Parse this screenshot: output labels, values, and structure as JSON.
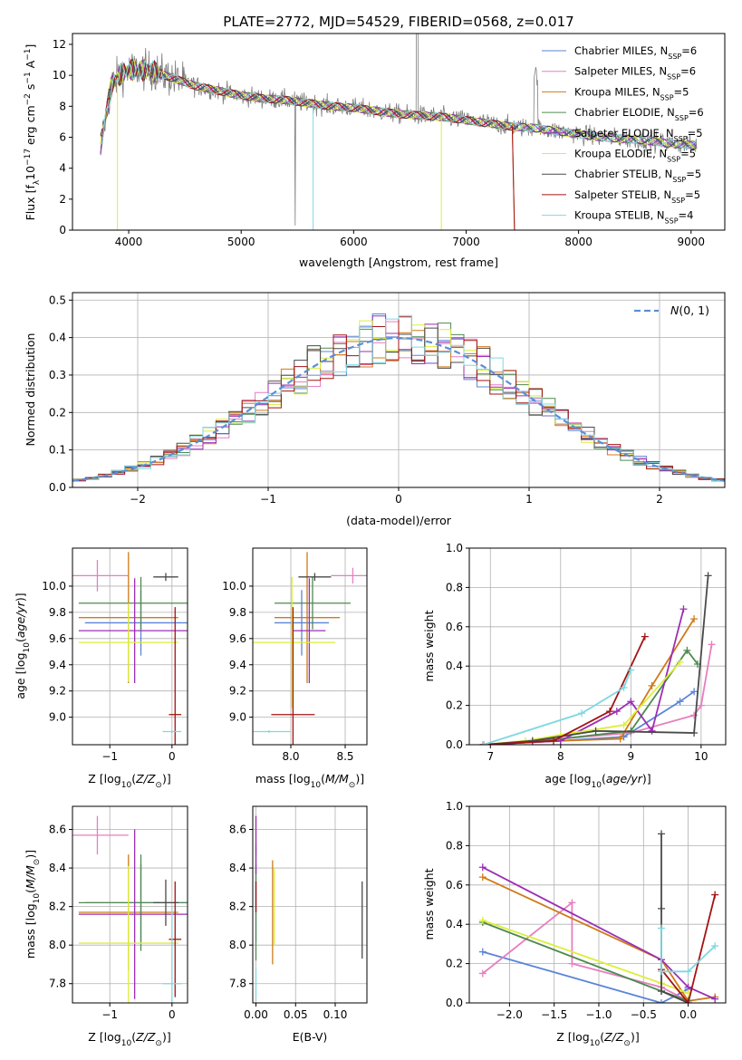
{
  "figure_title": "PLATE=2772, MJD=54529, FIBERID=0568, z=0.017",
  "colors": {
    "Chabrier MILES": "#5b84d8",
    "Salpeter MILES": "#e77fbf",
    "Kroupa MILES": "#d07a18",
    "Chabrier ELODIE": "#4f8a4f",
    "Salpeter ELODIE": "#9b2fb5",
    "Kroupa ELODIE": "#dcee3b",
    "Chabrier STELIB": "#4a4a4a",
    "Salpeter STELIB": "#a31313",
    "Kroupa STELIB": "#7fd8e0",
    "gauss": "#5b8fd6"
  },
  "chart_data": [
    {
      "id": "spectrum",
      "type": "line",
      "xlabel": "wavelength [Angstrom, rest frame]",
      "ylabel": "Flux [f_λ10^-17 erg cm^-2 s^-1 A^-1]",
      "xlim": [
        3500,
        9300
      ],
      "ylim": [
        0,
        12.7
      ],
      "xticks": [
        4000,
        5000,
        6000,
        7000,
        8000,
        9000
      ],
      "yticks": [
        0,
        2,
        4,
        6,
        8,
        10,
        12
      ],
      "grid": false,
      "legend_position": "top-right",
      "legend": [
        {
          "model": "Chabrier MILES",
          "n": "6"
        },
        {
          "model": "Salpeter MILES",
          "n": "6"
        },
        {
          "model": "Kroupa MILES",
          "n": "5"
        },
        {
          "model": "Chabrier ELODIE",
          "n": "6"
        },
        {
          "model": "Salpeter ELODIE",
          "n": "5"
        },
        {
          "model": "Kroupa ELODIE",
          "n": "5"
        },
        {
          "model": "Chabrier STELIB",
          "n": "5"
        },
        {
          "model": "Salpeter STELIB",
          "n": "5"
        },
        {
          "model": "Kroupa STELIB",
          "n": "4"
        }
      ],
      "data_x": [
        3750,
        3850,
        3950,
        4050,
        4200,
        4400,
        4600,
        4800,
        5000,
        5200,
        5400,
        5600,
        5800,
        6000,
        6200,
        6400,
        6600,
        6800,
        7000,
        7200,
        7400,
        7600,
        7800,
        8000,
        8200,
        8400,
        8600,
        8800,
        9000
      ],
      "data_y": [
        5.5,
        9.5,
        10.2,
        10.4,
        10.3,
        9.8,
        9.3,
        9.0,
        8.7,
        8.5,
        8.4,
        8.2,
        8.0,
        7.9,
        7.7,
        7.5,
        7.4,
        7.3,
        7.1,
        6.9,
        6.7,
        6.6,
        6.4,
        6.2,
        6.0,
        5.9,
        5.8,
        5.6,
        5.5
      ]
    },
    {
      "id": "residuals",
      "type": "line",
      "xlabel": "(data-model)/error",
      "ylabel": "Normed distribution",
      "xlim": [
        -2.5,
        2.5
      ],
      "ylim": [
        0,
        0.52
      ],
      "xticks": [
        -2,
        -1,
        0,
        1,
        2
      ],
      "yticks": [
        0.0,
        0.1,
        0.2,
        0.3,
        0.4,
        0.5
      ],
      "grid": true,
      "legend_position": "top-right",
      "series": [
        {
          "name": "N(0,1)",
          "mu": 0,
          "sigma": 1
        }
      ]
    },
    {
      "id": "age_vs_Z",
      "type": "scatter",
      "xlabel": "Z [log10(Z/Z_sun)]",
      "ylabel": "age [log10(age/yr)]",
      "xlim": [
        -1.6,
        0.25
      ],
      "ylim": [
        8.79,
        10.29
      ],
      "xticks": [
        -1,
        0
      ],
      "yticks": [
        9.0,
        9.2,
        9.4,
        9.6,
        9.8,
        10.0
      ],
      "grid": true,
      "points": [
        {
          "model": "Chabrier MILES",
          "x": -0.5,
          "xerr": 0.9,
          "y": 9.72,
          "yerr": 0.25
        },
        {
          "model": "Salpeter MILES",
          "x": -1.2,
          "xerr": 0.5,
          "y": 10.08,
          "yerr": 0.12
        },
        {
          "model": "Kroupa MILES",
          "x": -0.7,
          "xerr": 0.8,
          "y": 9.76,
          "yerr": 0.5
        },
        {
          "model": "Chabrier ELODIE",
          "x": -0.5,
          "xerr": 1.0,
          "y": 9.87,
          "yerr": 0.2
        },
        {
          "model": "Salpeter ELODIE",
          "x": -0.6,
          "xerr": 0.9,
          "y": 9.66,
          "yerr": 0.4
        },
        {
          "model": "Kroupa ELODIE",
          "x": -0.7,
          "xerr": 0.8,
          "y": 9.57,
          "yerr": 0.3
        },
        {
          "model": "Chabrier STELIB",
          "x": -0.1,
          "xerr": 0.2,
          "y": 10.07,
          "yerr": 0.03
        },
        {
          "model": "Salpeter STELIB",
          "x": 0.05,
          "xerr": 0.1,
          "y": 9.02,
          "yerr": 0.82
        },
        {
          "model": "Kroupa STELIB",
          "x": 0.0,
          "xerr": 0.15,
          "y": 8.89,
          "yerr": 0.01
        }
      ]
    },
    {
      "id": "age_vs_mass",
      "type": "scatter",
      "xlabel": "mass [log10(M/M_sun)]",
      "ylabel": "",
      "xlim": [
        7.65,
        8.7
      ],
      "ylim": [
        8.79,
        10.29
      ],
      "xticks": [
        8.0,
        8.5
      ],
      "yticks": [
        9.0,
        9.2,
        9.4,
        9.6,
        9.8,
        10.0
      ],
      "grid": true,
      "points": [
        {
          "model": "Chabrier MILES",
          "x": 8.1,
          "xerr": 0.25,
          "y": 9.72,
          "yerr": 0.25
        },
        {
          "model": "Salpeter MILES",
          "x": 8.57,
          "xerr": 0.2,
          "y": 10.08,
          "yerr": 0.06
        },
        {
          "model": "Kroupa MILES",
          "x": 8.15,
          "xerr": 0.3,
          "y": 9.76,
          "yerr": 0.5
        },
        {
          "model": "Chabrier ELODIE",
          "x": 8.2,
          "xerr": 0.35,
          "y": 9.87,
          "yerr": 0.2
        },
        {
          "model": "Salpeter ELODIE",
          "x": 8.17,
          "xerr": 0.15,
          "y": 9.66,
          "yerr": 0.4
        },
        {
          "model": "Kroupa ELODIE",
          "x": 8.01,
          "xerr": 0.4,
          "y": 9.57,
          "yerr": 0.5
        },
        {
          "model": "Chabrier STELIB",
          "x": 8.22,
          "xerr": 0.15,
          "y": 10.07,
          "yerr": 0.03
        },
        {
          "model": "Salpeter STELIB",
          "x": 8.02,
          "xerr": 0.2,
          "y": 9.02,
          "yerr": 0.82
        },
        {
          "model": "Kroupa STELIB",
          "x": 7.8,
          "xerr": 0.2,
          "y": 8.89,
          "yerr": 0.01
        }
      ]
    },
    {
      "id": "weights_vs_age",
      "type": "line",
      "xlabel": "age [log10(age/yr)]",
      "ylabel": "mass weight",
      "xlim": [
        6.7,
        10.35
      ],
      "ylim": [
        0.0,
        1.0
      ],
      "xticks": [
        7,
        8,
        9,
        10
      ],
      "yticks": [
        0.0,
        0.2,
        0.4,
        0.6,
        0.8,
        1.0
      ],
      "grid": true,
      "series": [
        {
          "model": "Chabrier MILES",
          "x": [
            6.9,
            8.0,
            8.9,
            9.7,
            9.9
          ],
          "y": [
            0.0,
            0.02,
            0.04,
            0.22,
            0.27
          ]
        },
        {
          "model": "Salpeter MILES",
          "x": [
            6.9,
            8.0,
            9.0,
            9.9,
            10.0,
            10.15
          ],
          "y": [
            0.0,
            0.03,
            0.06,
            0.15,
            0.2,
            0.51
          ]
        },
        {
          "model": "Kroupa MILES",
          "x": [
            6.9,
            8.0,
            8.85,
            9.3,
            9.9
          ],
          "y": [
            0.0,
            0.02,
            0.03,
            0.3,
            0.64
          ]
        },
        {
          "model": "Chabrier ELODIE",
          "x": [
            6.9,
            8.0,
            9.0,
            9.8,
            9.95
          ],
          "y": [
            0.0,
            0.03,
            0.07,
            0.48,
            0.41
          ]
        },
        {
          "model": "Salpeter ELODIE",
          "x": [
            6.9,
            8.0,
            8.8,
            9.0,
            9.3,
            9.75
          ],
          "y": [
            0.0,
            0.02,
            0.17,
            0.22,
            0.07,
            0.69
          ]
        },
        {
          "model": "Kroupa ELODIE",
          "x": [
            6.9,
            7.5,
            8.0,
            8.9,
            9.7
          ],
          "y": [
            0.0,
            0.02,
            0.05,
            0.1,
            0.42
          ]
        },
        {
          "model": "Chabrier STELIB",
          "x": [
            6.9,
            7.6,
            8.5,
            9.9,
            10.1
          ],
          "y": [
            0.0,
            0.02,
            0.07,
            0.06,
            0.86
          ]
        },
        {
          "model": "Salpeter STELIB",
          "x": [
            6.9,
            7.9,
            8.7,
            9.2
          ],
          "y": [
            0.0,
            0.02,
            0.17,
            0.55
          ]
        },
        {
          "model": "Kroupa STELIB",
          "x": [
            6.9,
            8.3,
            8.9,
            9.0
          ],
          "y": [
            0.0,
            0.16,
            0.29,
            0.38
          ]
        }
      ]
    },
    {
      "id": "mass_vs_Z",
      "type": "scatter",
      "xlabel": "Z [log10(Z/Z_sun)]",
      "ylabel": "mass [log10(M/M_sun)]",
      "xlim": [
        -1.6,
        0.25
      ],
      "ylim": [
        7.7,
        8.72
      ],
      "xticks": [
        -1,
        0
      ],
      "yticks": [
        7.8,
        8.0,
        8.2,
        8.4,
        8.6
      ],
      "grid": true,
      "points": [
        {
          "model": "Chabrier MILES",
          "x": -0.5,
          "xerr": 0.9,
          "y": 8.22,
          "yerr": 0.2
        },
        {
          "model": "Salpeter MILES",
          "x": -1.2,
          "xerr": 0.5,
          "y": 8.57,
          "yerr": 0.1
        },
        {
          "model": "Kroupa MILES",
          "x": -0.7,
          "xerr": 0.8,
          "y": 8.17,
          "yerr": 0.3
        },
        {
          "model": "Chabrier ELODIE",
          "x": -0.5,
          "xerr": 1.0,
          "y": 8.22,
          "yerr": 0.25
        },
        {
          "model": "Salpeter ELODIE",
          "x": -0.6,
          "xerr": 0.9,
          "y": 8.16,
          "yerr": 0.44
        },
        {
          "model": "Kroupa ELODIE",
          "x": -0.7,
          "xerr": 0.8,
          "y": 8.01,
          "yerr": 0.4
        },
        {
          "model": "Chabrier STELIB",
          "x": -0.1,
          "xerr": 0.2,
          "y": 8.22,
          "yerr": 0.12
        },
        {
          "model": "Salpeter STELIB",
          "x": 0.05,
          "xerr": 0.1,
          "y": 8.03,
          "yerr": 0.3
        },
        {
          "model": "Kroupa STELIB",
          "x": 0.0,
          "xerr": 0.15,
          "y": 7.8,
          "yerr": 0.4
        }
      ]
    },
    {
      "id": "mass_vs_ebv",
      "type": "scatter",
      "xlabel": "E(B-V)",
      "ylabel": "",
      "xlim": [
        -0.004,
        0.14
      ],
      "ylim": [
        7.7,
        8.72
      ],
      "xticks": [
        0.0,
        0.05,
        0.1
      ],
      "yticks": [
        7.8,
        8.0,
        8.2,
        8.4,
        8.6
      ],
      "grid": true,
      "points": [
        {
          "model": "Chabrier MILES",
          "x": 0.0,
          "xerr": 0.0,
          "y": 8.22,
          "yerr": 0.2
        },
        {
          "model": "Salpeter MILES",
          "x": 0.0,
          "xerr": 0.0,
          "y": 8.57,
          "yerr": 0.1
        },
        {
          "model": "Kroupa MILES",
          "x": 0.021,
          "xerr": 0.0,
          "y": 8.17,
          "yerr": 0.27
        },
        {
          "model": "Chabrier ELODIE",
          "x": 0.0,
          "xerr": 0.0,
          "y": 8.22,
          "yerr": 0.3
        },
        {
          "model": "Salpeter ELODIE",
          "x": 0.0,
          "xerr": 0.0,
          "y": 8.52,
          "yerr": 0.15
        },
        {
          "model": "Kroupa ELODIE",
          "x": 0.023,
          "xerr": 0.0,
          "y": 8.2,
          "yerr": 0.2
        },
        {
          "model": "Chabrier STELIB",
          "x": 0.134,
          "xerr": 0.0,
          "y": 8.13,
          "yerr": 0.2
        },
        {
          "model": "Salpeter STELIB",
          "x": 0.0,
          "xerr": 0.0,
          "y": 8.25,
          "yerr": 0.08
        },
        {
          "model": "Kroupa STELIB",
          "x": 0.0,
          "xerr": 0.0,
          "y": 7.8,
          "yerr": 0.08
        }
      ]
    },
    {
      "id": "weights_vs_Z",
      "type": "line",
      "xlabel": "Z [log10(Z/Z_sun)]",
      "ylabel": "mass weight",
      "xlim": [
        -2.45,
        0.42
      ],
      "ylim": [
        0.0,
        1.0
      ],
      "xticks": [
        -2.0,
        -1.5,
        -1.0,
        -0.5,
        0.0
      ],
      "yticks": [
        0.0,
        0.2,
        0.4,
        0.6,
        0.8,
        1.0
      ],
      "grid": true,
      "series": [
        {
          "model": "Chabrier MILES",
          "x": [
            -2.3,
            -0.3,
            0.0
          ],
          "y": [
            0.26,
            0.0,
            0.07
          ]
        },
        {
          "model": "Salpeter MILES",
          "x": [
            -2.3,
            -1.3,
            -1.3,
            -0.3,
            0.0
          ],
          "y": [
            0.15,
            0.51,
            0.2,
            0.08,
            0.01
          ]
        },
        {
          "model": "Kroupa MILES",
          "x": [
            -2.3,
            -0.3,
            0.0,
            0.3
          ],
          "y": [
            0.64,
            0.22,
            0.01,
            0.03
          ]
        },
        {
          "model": "Chabrier ELODIE",
          "x": [
            -2.3,
            -0.3,
            0.0
          ],
          "y": [
            0.41,
            0.06,
            0.01
          ]
        },
        {
          "model": "Salpeter ELODIE",
          "x": [
            -2.3,
            -0.3,
            0.0,
            0.3
          ],
          "y": [
            0.69,
            0.22,
            0.08,
            0.02
          ]
        },
        {
          "model": "Kroupa ELODIE",
          "x": [
            -2.3,
            -0.3,
            0.0
          ],
          "y": [
            0.42,
            0.1,
            0.05
          ]
        },
        {
          "model": "Chabrier STELIB",
          "x": [
            -0.3,
            -0.3,
            -0.3,
            0.0
          ],
          "y": [
            0.86,
            0.48,
            0.06,
            0.0
          ]
        },
        {
          "model": "Salpeter STELIB",
          "x": [
            -0.3,
            0.0,
            0.3
          ],
          "y": [
            0.17,
            0.0,
            0.55
          ]
        },
        {
          "model": "Kroupa STELIB",
          "x": [
            -0.3,
            -0.3,
            0.0,
            0.3
          ],
          "y": [
            0.38,
            0.16,
            0.16,
            0.29
          ]
        }
      ]
    }
  ]
}
